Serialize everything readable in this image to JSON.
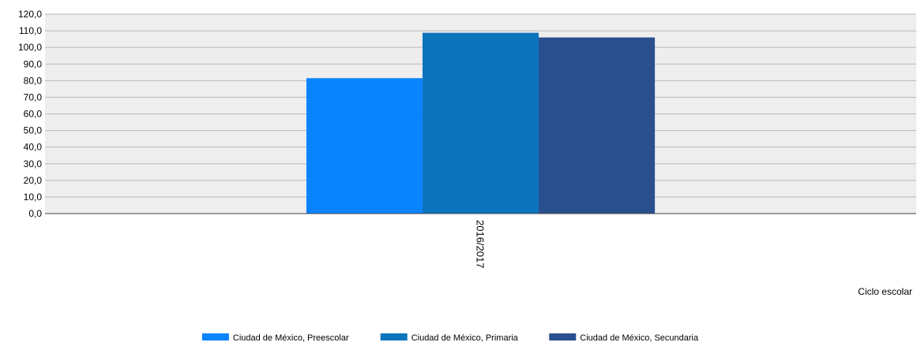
{
  "chart_data": {
    "type": "bar",
    "title": "",
    "xlabel": "Ciclo escolar",
    "ylabel": "",
    "categories": [
      "2016/2017"
    ],
    "series": [
      {
        "name": "Ciudad de México, Preescolar",
        "values": [
          81.5
        ],
        "color": "#0a84fe"
      },
      {
        "name": "Ciudad de México, Primaria",
        "values": [
          108.8
        ],
        "color": "#0b74bc"
      },
      {
        "name": "Ciudad de México, Secundaria",
        "values": [
          106.0
        ],
        "color": "#2a4f8f"
      }
    ],
    "ylim": [
      0,
      120
    ],
    "y_ticks": [
      "0,0",
      "10,0",
      "20,0",
      "30,0",
      "40,0",
      "50,0",
      "60,0",
      "70,0",
      "80,0",
      "90,0",
      "100,0",
      "110,0",
      "120,0"
    ],
    "grid": true,
    "plot_background": "#eeeeee",
    "legend_position": "bottom-center"
  }
}
